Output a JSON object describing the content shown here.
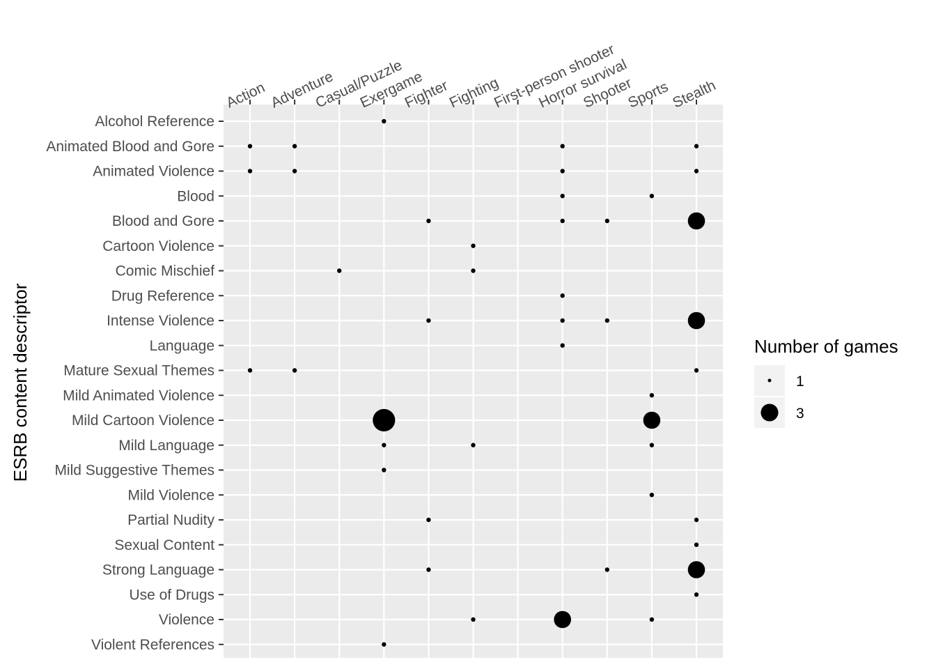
{
  "chart_data": {
    "type": "scatter",
    "title": "",
    "xlabel": "",
    "ylabel": "ESRB content descriptor",
    "x_position": "top",
    "x_categories": [
      "Action",
      "Adventure",
      "Casual/Puzzle",
      "Exergame",
      "Fighter",
      "Fighting",
      "First-person shooter",
      "Horror survival",
      "Shooter",
      "Sports",
      "Stealth"
    ],
    "y_categories": [
      "Alcohol Reference",
      "Animated Blood and Gore",
      "Animated Violence",
      "Blood",
      "Blood and Gore",
      "Cartoon Violence",
      "Comic Mischief",
      "Drug Reference",
      "Intense Violence",
      "Language",
      "Mature Sexual Themes",
      "Mild Animated Violence",
      "Mild Cartoon Violence",
      "Mild Language",
      "Mild Suggestive Themes",
      "Mild Violence",
      "Partial Nudity",
      "Sexual Content",
      "Strong Language",
      "Use of Drugs",
      "Violence",
      "Violent References"
    ],
    "size_legend": {
      "title": "Number of games",
      "entries": [
        {
          "label": "1",
          "value": 1
        },
        {
          "label": "3",
          "value": 3
        }
      ],
      "placement": "right"
    },
    "grid": true,
    "points": [
      {
        "x": "Exergame",
        "y": "Alcohol Reference",
        "n": 1
      },
      {
        "x": "Action",
        "y": "Animated Blood and Gore",
        "n": 1
      },
      {
        "x": "Adventure",
        "y": "Animated Blood and Gore",
        "n": 1
      },
      {
        "x": "Horror survival",
        "y": "Animated Blood and Gore",
        "n": 1
      },
      {
        "x": "Stealth",
        "y": "Animated Blood and Gore",
        "n": 1
      },
      {
        "x": "Action",
        "y": "Animated Violence",
        "n": 1
      },
      {
        "x": "Adventure",
        "y": "Animated Violence",
        "n": 1
      },
      {
        "x": "Horror survival",
        "y": "Animated Violence",
        "n": 1
      },
      {
        "x": "Stealth",
        "y": "Animated Violence",
        "n": 1
      },
      {
        "x": "Horror survival",
        "y": "Blood",
        "n": 1
      },
      {
        "x": "Sports",
        "y": "Blood",
        "n": 1
      },
      {
        "x": "Fighter",
        "y": "Blood and Gore",
        "n": 1
      },
      {
        "x": "Horror survival",
        "y": "Blood and Gore",
        "n": 1
      },
      {
        "x": "Shooter",
        "y": "Blood and Gore",
        "n": 1
      },
      {
        "x": "Stealth",
        "y": "Blood and Gore",
        "n": 2.5
      },
      {
        "x": "Fighting",
        "y": "Cartoon Violence",
        "n": 1
      },
      {
        "x": "Casual/Puzzle",
        "y": "Comic Mischief",
        "n": 1
      },
      {
        "x": "Fighting",
        "y": "Comic Mischief",
        "n": 1
      },
      {
        "x": "Horror survival",
        "y": "Drug Reference",
        "n": 1
      },
      {
        "x": "Fighter",
        "y": "Intense Violence",
        "n": 1
      },
      {
        "x": "Horror survival",
        "y": "Intense Violence",
        "n": 1
      },
      {
        "x": "Shooter",
        "y": "Intense Violence",
        "n": 1
      },
      {
        "x": "Stealth",
        "y": "Intense Violence",
        "n": 2.5
      },
      {
        "x": "Horror survival",
        "y": "Language",
        "n": 1
      },
      {
        "x": "Action",
        "y": "Mature Sexual Themes",
        "n": 1
      },
      {
        "x": "Adventure",
        "y": "Mature Sexual Themes",
        "n": 1
      },
      {
        "x": "Stealth",
        "y": "Mature Sexual Themes",
        "n": 1
      },
      {
        "x": "Sports",
        "y": "Mild Animated Violence",
        "n": 1
      },
      {
        "x": "Exergame",
        "y": "Mild Cartoon Violence",
        "n": 3
      },
      {
        "x": "Sports",
        "y": "Mild Cartoon Violence",
        "n": 2.5
      },
      {
        "x": "Exergame",
        "y": "Mild Language",
        "n": 1
      },
      {
        "x": "Fighting",
        "y": "Mild Language",
        "n": 1
      },
      {
        "x": "Sports",
        "y": "Mild Language",
        "n": 1
      },
      {
        "x": "Exergame",
        "y": "Mild Suggestive Themes",
        "n": 1
      },
      {
        "x": "Sports",
        "y": "Mild Violence",
        "n": 1
      },
      {
        "x": "Fighter",
        "y": "Partial Nudity",
        "n": 1
      },
      {
        "x": "Stealth",
        "y": "Partial Nudity",
        "n": 1
      },
      {
        "x": "Stealth",
        "y": "Sexual Content",
        "n": 1
      },
      {
        "x": "Fighter",
        "y": "Strong Language",
        "n": 1
      },
      {
        "x": "Shooter",
        "y": "Strong Language",
        "n": 1
      },
      {
        "x": "Stealth",
        "y": "Strong Language",
        "n": 2.5
      },
      {
        "x": "Stealth",
        "y": "Use of Drugs",
        "n": 1
      },
      {
        "x": "Fighting",
        "y": "Violence",
        "n": 1
      },
      {
        "x": "Horror survival",
        "y": "Violence",
        "n": 2.5
      },
      {
        "x": "Sports",
        "y": "Violence",
        "n": 1
      },
      {
        "x": "Exergame",
        "y": "Violent References",
        "n": 1
      }
    ]
  }
}
